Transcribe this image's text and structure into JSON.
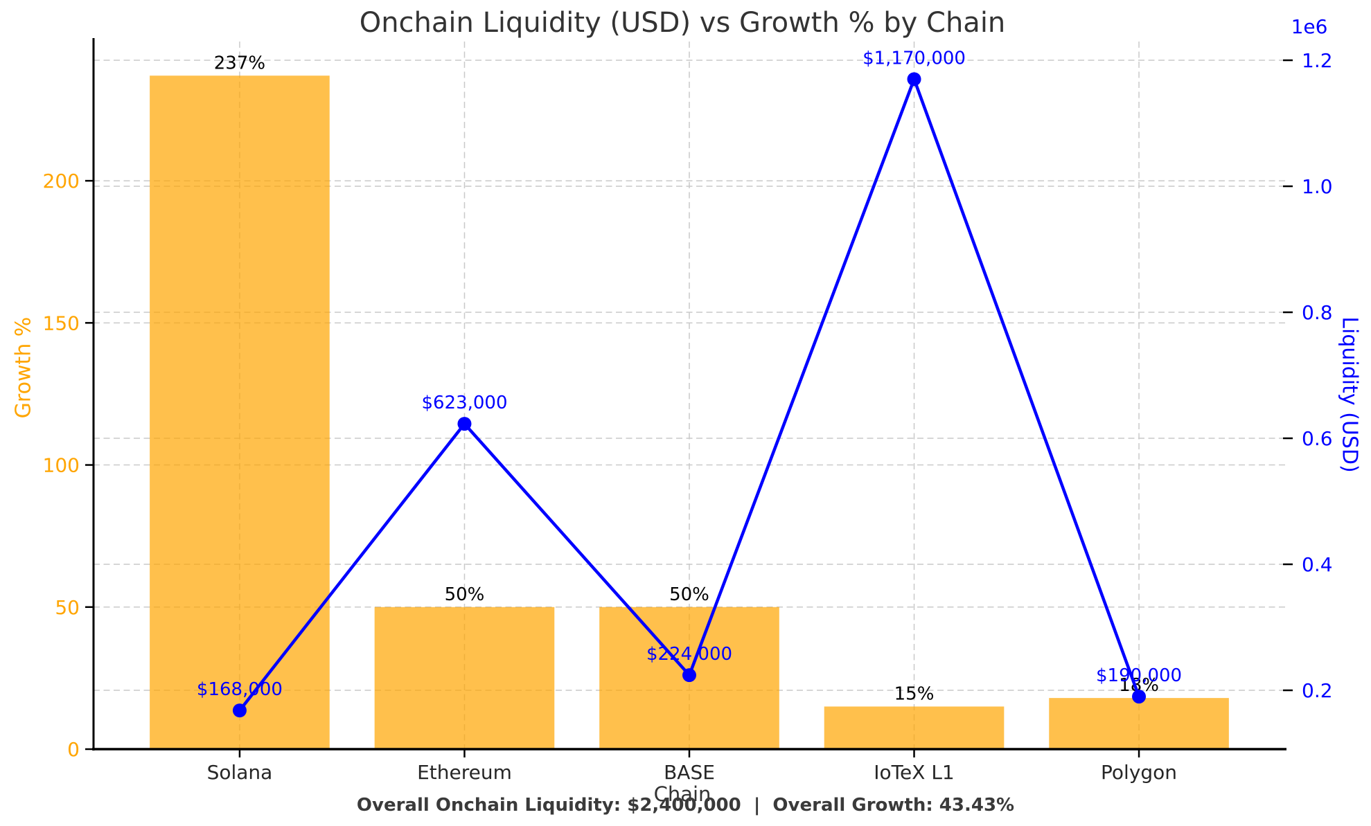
{
  "title": "Onchain Liquidity (USD) vs Growth % by Chain",
  "footer_stats": "Overall Onchain Liquidity: $2,400,000  |  Overall Growth: 43.43%",
  "chart_data": {
    "type": "bar+line combo, dual y-axis",
    "title": "Onchain Liquidity (USD) vs Growth % by Chain",
    "xlabel": "Chain",
    "categories": [
      "Solana",
      "Ethereum",
      "BASE",
      "IoTeX L1",
      "Polygon"
    ],
    "series": [
      {
        "name": "Growth %",
        "type": "bar",
        "axis": "left",
        "color": "rgba(255,165,0,0.70)",
        "values": [
          237,
          50,
          50,
          15,
          18
        ],
        "labels": [
          "237%",
          "50%",
          "50%",
          "15%",
          "18%"
        ]
      },
      {
        "name": "Liquidity (USD)",
        "type": "line",
        "axis": "right",
        "color": "#0000FF",
        "values": [
          168000,
          623000,
          224000,
          1170000,
          190000
        ],
        "labels": [
          "$168,000",
          "$623,000",
          "$224,000",
          "$1,170,000",
          "$190,000"
        ]
      }
    ],
    "left_axis": {
      "label": "Growth %",
      "color": "#FFA500",
      "ticks": [
        "0",
        "50",
        "100",
        "150",
        "200"
      ],
      "tick_values": [
        0,
        50,
        100,
        150,
        200
      ],
      "range": [
        0,
        249
      ]
    },
    "right_axis": {
      "label": "Liquidity (USD)",
      "color": "#0000FF",
      "offset_text": "1e6",
      "ticks": [
        "0.2",
        "0.4",
        "0.6",
        "0.8",
        "1.0",
        "1.2"
      ],
      "tick_values": [
        200000,
        400000,
        600000,
        800000,
        1000000,
        1200000
      ],
      "range": [
        106600,
        1229700
      ]
    },
    "grid": {
      "style": "dashed",
      "color": "#C9C9C9",
      "vertical_at_categories": true,
      "horizontal_both_axes": true
    },
    "legend": "none",
    "annotation_footer": "Overall Onchain Liquidity: $2,400,000  |  Overall Growth: 43.43%"
  }
}
